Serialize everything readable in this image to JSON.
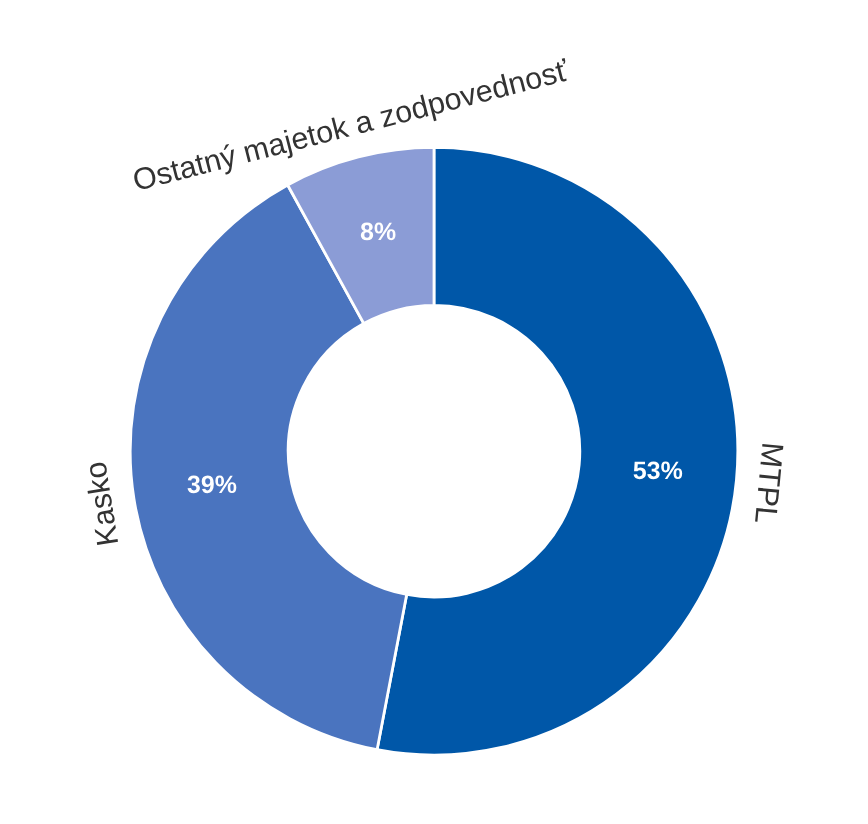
{
  "chart_data": {
    "type": "donut",
    "categories": [
      "MTPL",
      "Kasko",
      "Ostatný majetok a zodpovednosť"
    ],
    "values": [
      53,
      39,
      8
    ],
    "colors": [
      "#0057a8",
      "#4a74bf",
      "#8b9cd6"
    ],
    "value_labels": [
      "53%",
      "39%",
      "8%"
    ]
  }
}
